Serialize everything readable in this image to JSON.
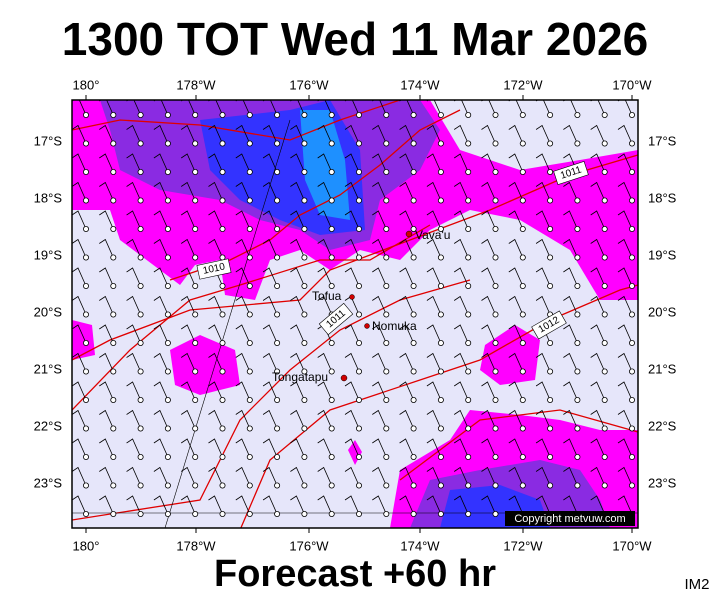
{
  "header": {
    "title": "1300 TOT Wed 11 Mar 2026"
  },
  "footer": {
    "subtitle": "Forecast +60 hr",
    "code": "IM2"
  },
  "axes": {
    "longitudes": [
      "180°",
      "178°W",
      "176°W",
      "174°W",
      "172°W",
      "170°W"
    ],
    "latitudes": [
      "17°S",
      "18°S",
      "19°S",
      "20°S",
      "21°S",
      "22°S",
      "23°S"
    ]
  },
  "places": [
    {
      "label": "Vava'u"
    },
    {
      "label": "Tofua"
    },
    {
      "label": "Nomuka"
    },
    {
      "label": "Tongatapu"
    }
  ],
  "isobars": [
    {
      "label": "1011"
    },
    {
      "label": "1010"
    },
    {
      "label": "1011"
    },
    {
      "label": "1012"
    }
  ],
  "copyright": "Copyright metvuw.com"
}
